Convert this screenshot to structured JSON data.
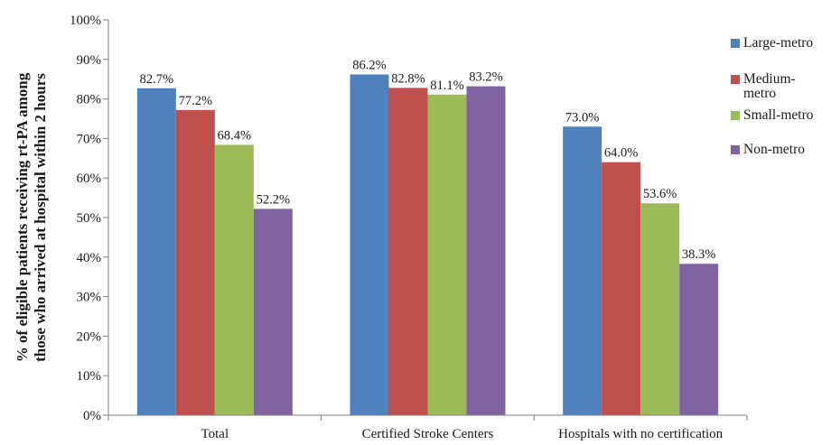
{
  "chart_data": {
    "type": "bar",
    "title": "",
    "xlabel": "",
    "ylabel": [
      "% of eligible patients receiving rt-PA among",
      "those who arrived at hospital within 2 hours"
    ],
    "ylim": [
      0,
      100
    ],
    "yticks": [
      "0%",
      "10%",
      "20%",
      "30%",
      "40%",
      "50%",
      "60%",
      "70%",
      "80%",
      "90%",
      "100%"
    ],
    "categories": [
      "Total",
      "Certified Stroke Centers",
      "Hospitals with no certification"
    ],
    "series": [
      {
        "name": "Large-metro",
        "color": "#4F81BD",
        "values": [
          82.7,
          86.2,
          73.0
        ],
        "labels": [
          "82.7%",
          "86.2%",
          "73.0%"
        ]
      },
      {
        "name": "Medium-metro",
        "color": "#C0504D",
        "values": [
          77.2,
          82.8,
          64.0
        ],
        "labels": [
          "77.2%",
          "82.8%",
          "64.0%"
        ]
      },
      {
        "name": "Small-metro",
        "color": "#9BBB59",
        "values": [
          68.4,
          81.1,
          53.6
        ],
        "labels": [
          "68.4%",
          "81.1%",
          "53.6%"
        ]
      },
      {
        "name": "Non-metro",
        "color": "#8064A2",
        "values": [
          52.2,
          83.2,
          38.3
        ],
        "labels": [
          "52.2%",
          "83.2%",
          "38.3%"
        ]
      }
    ],
    "legend": "right",
    "grid": false
  }
}
